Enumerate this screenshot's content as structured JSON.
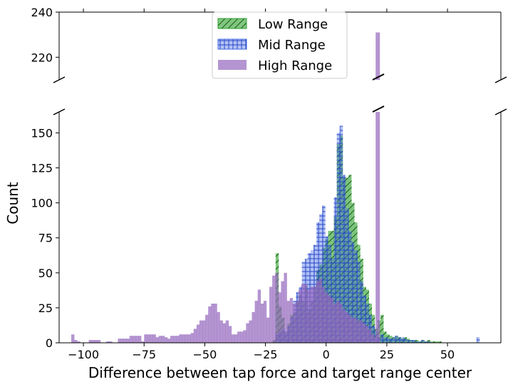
{
  "chart_data": {
    "type": "histogram",
    "broken_axis": true,
    "xlabel": "Difference between tap force and target range center",
    "ylabel": "Count",
    "xlim": [
      -110,
      72
    ],
    "xticks": [
      -100,
      -75,
      -50,
      -25,
      0,
      25,
      50
    ],
    "xtick_labels": [
      "−100",
      "−75",
      "−50",
      "−25",
      "0",
      "25",
      "50"
    ],
    "panels": {
      "top": {
        "ylim": [
          210,
          240
        ],
        "yticks": [
          220,
          240
        ],
        "ytick_labels": [
          "220",
          "240"
        ]
      },
      "bottom": {
        "ylim": [
          0,
          165
        ],
        "yticks": [
          0,
          25,
          50,
          75,
          100,
          125,
          150
        ],
        "ytick_labels": [
          "0",
          "25",
          "50",
          "75",
          "100",
          "125",
          "150"
        ]
      }
    },
    "legend": {
      "position": "upper center"
    },
    "bin_width": 1.2,
    "series": [
      {
        "name": "Low Range",
        "color": "#2ca02c",
        "hatch": "diagonal",
        "bins": [
          [
            -22,
            2
          ],
          [
            -20.8,
            64
          ],
          [
            -19.6,
            26
          ],
          [
            -18.4,
            18
          ],
          [
            -17.2,
            8
          ],
          [
            -16,
            14
          ],
          [
            -14.8,
            20
          ],
          [
            -13.6,
            22
          ],
          [
            -12.4,
            30
          ],
          [
            -11.2,
            34
          ],
          [
            -10,
            30
          ],
          [
            -8.8,
            40
          ],
          [
            -7.6,
            24
          ],
          [
            -6.4,
            30
          ],
          [
            -5.2,
            40
          ],
          [
            -4,
            52
          ],
          [
            -2.8,
            56
          ],
          [
            -1.6,
            68
          ],
          [
            -0.4,
            74
          ],
          [
            0.8,
            80
          ],
          [
            2,
            80
          ],
          [
            3.2,
            90
          ],
          [
            4.4,
            142
          ],
          [
            5.6,
            148
          ],
          [
            6.8,
            118
          ],
          [
            8,
            118
          ],
          [
            9.2,
            120
          ],
          [
            10.4,
            100
          ],
          [
            11.6,
            86
          ],
          [
            12.8,
            70
          ],
          [
            14,
            60
          ],
          [
            15.2,
            40
          ],
          [
            16.4,
            38
          ],
          [
            17.6,
            28
          ],
          [
            18.8,
            20
          ],
          [
            20,
            10
          ],
          [
            21.2,
            16
          ],
          [
            22.4,
            20
          ],
          [
            23.6,
            8
          ],
          [
            24.8,
            6
          ],
          [
            26,
            5
          ],
          [
            27.2,
            4
          ],
          [
            28.4,
            5
          ],
          [
            29.6,
            4
          ],
          [
            30.8,
            3
          ],
          [
            32,
            4
          ],
          [
            33.2,
            3
          ],
          [
            34.4,
            2
          ],
          [
            35.6,
            2
          ],
          [
            36.8,
            2
          ],
          [
            38,
            1
          ],
          [
            39.2,
            2
          ],
          [
            40.4,
            1
          ],
          [
            41.6,
            2
          ],
          [
            42.8,
            1
          ],
          [
            44,
            1
          ],
          [
            45.2,
            1
          ],
          [
            46.4,
            1
          ]
        ]
      },
      {
        "name": "Mid Range",
        "color": "#4169e1",
        "hatch": "grid",
        "bins": [
          [
            -20.8,
            6
          ],
          [
            -19.6,
            8
          ],
          [
            -18.4,
            10
          ],
          [
            -17.2,
            8
          ],
          [
            -16,
            12
          ],
          [
            -14.8,
            18
          ],
          [
            -13.6,
            30
          ],
          [
            -12.4,
            36
          ],
          [
            -11.2,
            40
          ],
          [
            -10,
            58
          ],
          [
            -8.8,
            60
          ],
          [
            -7.6,
            64
          ],
          [
            -6.4,
            66
          ],
          [
            -5.2,
            70
          ],
          [
            -4,
            86
          ],
          [
            -2.8,
            92
          ],
          [
            -1.6,
            98
          ],
          [
            -0.4,
            76
          ],
          [
            0.8,
            70
          ],
          [
            2,
            60
          ],
          [
            3.2,
            104
          ],
          [
            4.4,
            150
          ],
          [
            5.6,
            155
          ],
          [
            6.8,
            120
          ],
          [
            8,
            96
          ],
          [
            9.2,
            80
          ],
          [
            10.4,
            72
          ],
          [
            11.6,
            66
          ],
          [
            12.8,
            58
          ],
          [
            14,
            44
          ],
          [
            15.2,
            34
          ],
          [
            16.4,
            28
          ],
          [
            17.6,
            20
          ],
          [
            18.8,
            12
          ],
          [
            20,
            8
          ],
          [
            21.2,
            4
          ],
          [
            22.4,
            6
          ],
          [
            23.6,
            4
          ],
          [
            24.8,
            4
          ],
          [
            26,
            3
          ],
          [
            27.2,
            4
          ],
          [
            28.4,
            5
          ],
          [
            29.6,
            4
          ],
          [
            30.8,
            4
          ],
          [
            32,
            3
          ],
          [
            33.2,
            2
          ],
          [
            34.4,
            2
          ],
          [
            35.6,
            2
          ],
          [
            36.8,
            1
          ],
          [
            38,
            1
          ],
          [
            39.2,
            2
          ],
          [
            40.4,
            1
          ],
          [
            41.6,
            1
          ],
          [
            62,
            4
          ]
        ]
      },
      {
        "name": "High Range",
        "color": "#9467bd",
        "hatch": "none",
        "bins": [
          [
            -105,
            6
          ],
          [
            -103.8,
            2
          ],
          [
            -102.6,
            1
          ],
          [
            -97.8,
            2
          ],
          [
            -96.6,
            2
          ],
          [
            -95.4,
            2
          ],
          [
            -94.2,
            2
          ],
          [
            -90.6,
            1
          ],
          [
            -89.4,
            1
          ],
          [
            -85.8,
            3
          ],
          [
            -84.6,
            3
          ],
          [
            -83.4,
            3
          ],
          [
            -82.2,
            3
          ],
          [
            -81,
            5
          ],
          [
            -79.8,
            5
          ],
          [
            -78.6,
            5
          ],
          [
            -77.4,
            5
          ],
          [
            -76.2,
            1
          ],
          [
            -75,
            6
          ],
          [
            -73.8,
            6
          ],
          [
            -72.6,
            6
          ],
          [
            -71.4,
            6
          ],
          [
            -70.2,
            4
          ],
          [
            -69,
            5
          ],
          [
            -67.8,
            5
          ],
          [
            -66.6,
            4
          ],
          [
            -65.4,
            3
          ],
          [
            -64.2,
            5
          ],
          [
            -63,
            5
          ],
          [
            -61.8,
            5
          ],
          [
            -60.6,
            6
          ],
          [
            -59.4,
            6
          ],
          [
            -58.2,
            6
          ],
          [
            -57,
            6
          ],
          [
            -55.8,
            7
          ],
          [
            -54.6,
            10
          ],
          [
            -53.4,
            13
          ],
          [
            -52.2,
            16
          ],
          [
            -51,
            16
          ],
          [
            -49.8,
            20
          ],
          [
            -48.6,
            26
          ],
          [
            -47.4,
            28
          ],
          [
            -46.2,
            28
          ],
          [
            -45,
            22
          ],
          [
            -43.8,
            16
          ],
          [
            -42.6,
            14
          ],
          [
            -41.4,
            16
          ],
          [
            -40.2,
            12
          ],
          [
            -39,
            6
          ],
          [
            -37.8,
            6
          ],
          [
            -36.6,
            8
          ],
          [
            -35.4,
            8
          ],
          [
            -34.2,
            9
          ],
          [
            -33,
            14
          ],
          [
            -31.8,
            16
          ],
          [
            -30.6,
            22
          ],
          [
            -29.4,
            30
          ],
          [
            -28.2,
            38
          ],
          [
            -27,
            28
          ],
          [
            -25.8,
            30
          ],
          [
            -24.6,
            18
          ],
          [
            -23.4,
            40
          ],
          [
            -22.2,
            48
          ],
          [
            -21,
            50
          ],
          [
            -19.8,
            36
          ],
          [
            -18.6,
            44
          ],
          [
            -17.4,
            50
          ],
          [
            -16.2,
            30
          ],
          [
            -15,
            32
          ],
          [
            -13.8,
            28
          ],
          [
            -12.6,
            30
          ],
          [
            -11.4,
            38
          ],
          [
            -10.2,
            42
          ],
          [
            -9,
            42
          ],
          [
            -7.8,
            38
          ],
          [
            -6.6,
            40
          ],
          [
            -5.4,
            40
          ],
          [
            -4.2,
            44
          ],
          [
            -3,
            46
          ],
          [
            -1.8,
            40
          ],
          [
            -0.6,
            36
          ],
          [
            0.6,
            34
          ],
          [
            1.8,
            32
          ],
          [
            3,
            28
          ],
          [
            4.2,
            30
          ],
          [
            5.4,
            28
          ],
          [
            6.6,
            24
          ],
          [
            7.8,
            22
          ],
          [
            9,
            20
          ],
          [
            10.2,
            18
          ],
          [
            11.4,
            18
          ],
          [
            12.6,
            16
          ],
          [
            13.8,
            16
          ],
          [
            15,
            14
          ],
          [
            16.2,
            12
          ],
          [
            17.4,
            10
          ],
          [
            18.6,
            6
          ],
          [
            19.8,
            4
          ],
          [
            20.4,
            231
          ]
        ]
      }
    ]
  }
}
